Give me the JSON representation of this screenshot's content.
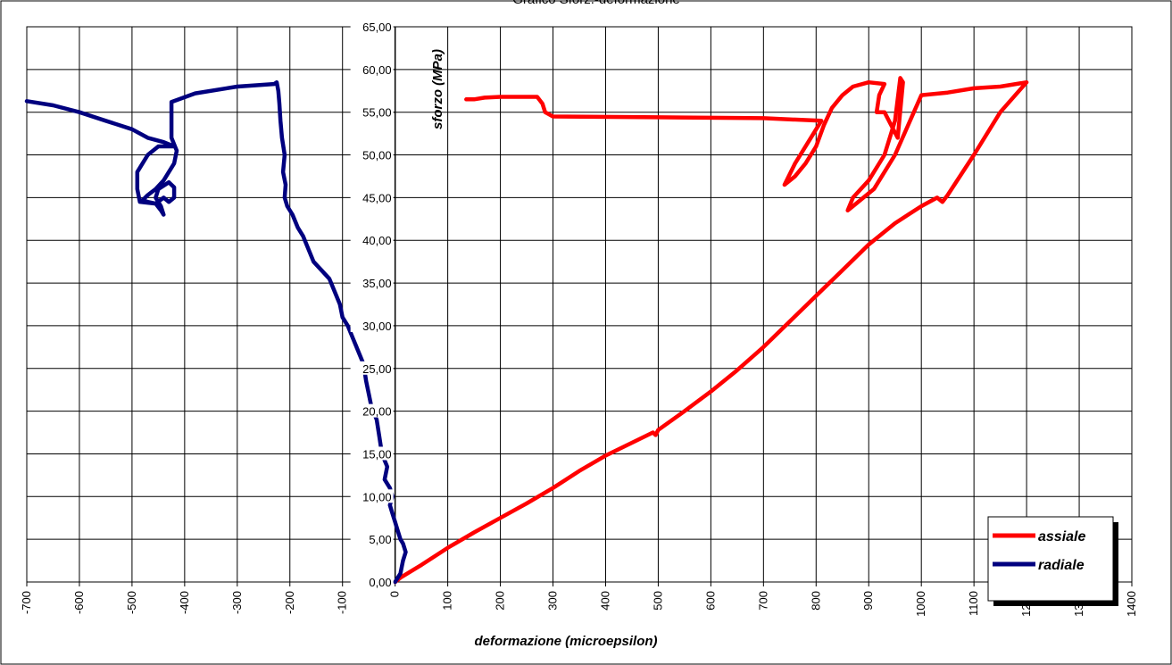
{
  "chart_data": {
    "type": "line",
    "title": "Grafico Sforz.-deformazione",
    "xlabel": "deformazione (microepsilon)",
    "ylabel": "sforzo (MPa)",
    "xlim": [
      -700,
      1400
    ],
    "ylim": [
      0,
      65
    ],
    "x_ticks": [
      -700,
      -600,
      -500,
      -400,
      -300,
      -200,
      -100,
      0,
      100,
      200,
      300,
      400,
      500,
      600,
      700,
      800,
      900,
      1000,
      1100,
      1200,
      1300,
      1400
    ],
    "y_ticks": [
      "0,00",
      "5,00",
      "10,00",
      "15,00",
      "20,00",
      "25,00",
      "30,00",
      "35,00",
      "40,00",
      "45,00",
      "50,00",
      "55,00",
      "60,00",
      "65,00"
    ],
    "grid": true,
    "legend_position": "bottom-right",
    "series": [
      {
        "name": "assiale",
        "color": "#ff0000",
        "points": [
          [
            0,
            0
          ],
          [
            10,
            0.5
          ],
          [
            50,
            2
          ],
          [
            100,
            4
          ],
          [
            150,
            5.8
          ],
          [
            200,
            7.5
          ],
          [
            250,
            9.2
          ],
          [
            300,
            11
          ],
          [
            350,
            13
          ],
          [
            400,
            14.8
          ],
          [
            450,
            16.3
          ],
          [
            490,
            17.5
          ],
          [
            495,
            17.2
          ],
          [
            500,
            17.8
          ],
          [
            550,
            20
          ],
          [
            600,
            22.3
          ],
          [
            650,
            24.8
          ],
          [
            700,
            27.5
          ],
          [
            750,
            30.5
          ],
          [
            800,
            33.5
          ],
          [
            850,
            36.5
          ],
          [
            900,
            39.5
          ],
          [
            950,
            42
          ],
          [
            1000,
            44
          ],
          [
            1030,
            45
          ],
          [
            1040,
            44.5
          ],
          [
            1050,
            45.3
          ],
          [
            1100,
            50
          ],
          [
            1150,
            55
          ],
          [
            1200,
            58.5
          ],
          [
            1150,
            58
          ],
          [
            1100,
            57.8
          ],
          [
            1050,
            57.3
          ],
          [
            1000,
            57
          ],
          [
            950,
            50
          ],
          [
            910,
            46
          ],
          [
            890,
            45
          ],
          [
            870,
            44
          ],
          [
            860,
            43.5
          ],
          [
            870,
            45
          ],
          [
            900,
            47
          ],
          [
            930,
            50
          ],
          [
            950,
            54
          ],
          [
            960,
            59
          ],
          [
            965,
            58.5
          ],
          [
            955,
            52
          ],
          [
            930,
            55
          ],
          [
            915,
            55
          ],
          [
            920,
            57
          ],
          [
            930,
            58.3
          ],
          [
            900,
            58.5
          ],
          [
            870,
            58
          ],
          [
            850,
            57
          ],
          [
            830,
            55.5
          ],
          [
            815,
            53.5
          ],
          [
            800,
            51
          ],
          [
            780,
            49
          ],
          [
            760,
            47.5
          ],
          [
            740,
            46.5
          ],
          [
            760,
            49
          ],
          [
            790,
            52
          ],
          [
            810,
            54
          ],
          [
            700,
            54.3
          ],
          [
            500,
            54.4
          ],
          [
            300,
            54.5
          ],
          [
            285,
            55
          ],
          [
            280,
            56
          ],
          [
            270,
            56.8
          ],
          [
            200,
            56.8
          ],
          [
            170,
            56.7
          ],
          [
            150,
            56.5
          ],
          [
            135,
            56.5
          ]
        ]
      },
      {
        "name": "radiale",
        "color": "#00007f",
        "points": [
          [
            0,
            0
          ],
          [
            5,
            0.5
          ],
          [
            10,
            1
          ],
          [
            15,
            2.5
          ],
          [
            20,
            3.5
          ],
          [
            15,
            4.5
          ],
          [
            10,
            5
          ],
          [
            5,
            6
          ],
          [
            0,
            7
          ],
          [
            -5,
            8
          ],
          [
            -10,
            9
          ],
          [
            -5,
            10
          ],
          [
            -10,
            11
          ],
          [
            -20,
            12
          ],
          [
            -15,
            13.5
          ],
          [
            -25,
            15
          ],
          [
            -30,
            17
          ],
          [
            -35,
            19
          ],
          [
            -45,
            20.5
          ],
          [
            -50,
            22
          ],
          [
            -55,
            23.5
          ],
          [
            -60,
            25.5
          ],
          [
            -70,
            27
          ],
          [
            -80,
            28.5
          ],
          [
            -90,
            30
          ],
          [
            -100,
            31
          ],
          [
            -105,
            32.5
          ],
          [
            -115,
            34
          ],
          [
            -125,
            35.5
          ],
          [
            -140,
            36.5
          ],
          [
            -155,
            37.5
          ],
          [
            -165,
            39
          ],
          [
            -175,
            40.5
          ],
          [
            -185,
            41.5
          ],
          [
            -195,
            43
          ],
          [
            -205,
            44
          ],
          [
            -210,
            45
          ],
          [
            -208,
            46.5
          ],
          [
            -213,
            48
          ],
          [
            -210,
            50
          ],
          [
            -215,
            52
          ],
          [
            -218,
            54
          ],
          [
            -220,
            56
          ],
          [
            -222,
            57.5
          ],
          [
            -225,
            58.5
          ],
          [
            -230,
            58.3
          ],
          [
            -300,
            58
          ],
          [
            -380,
            57.2
          ],
          [
            -425,
            56.2
          ],
          [
            -425,
            52
          ],
          [
            -415,
            50.5
          ],
          [
            -420,
            49
          ],
          [
            -440,
            47
          ],
          [
            -455,
            46
          ],
          [
            -470,
            45.3
          ],
          [
            -480,
            44.7
          ],
          [
            -470,
            44.5
          ],
          [
            -455,
            44.3
          ],
          [
            -445,
            43.5
          ],
          [
            -440,
            43
          ],
          [
            -445,
            44
          ],
          [
            -455,
            45
          ],
          [
            -450,
            46
          ],
          [
            -430,
            46.8
          ],
          [
            -420,
            46.2
          ],
          [
            -420,
            45
          ],
          [
            -430,
            44.5
          ],
          [
            -440,
            45
          ],
          [
            -455,
            44.3
          ],
          [
            -485,
            44.5
          ],
          [
            -490,
            46
          ],
          [
            -490,
            48
          ],
          [
            -470,
            50
          ],
          [
            -450,
            51
          ],
          [
            -420,
            51
          ],
          [
            -440,
            51.5
          ],
          [
            -470,
            52
          ],
          [
            -500,
            53
          ],
          [
            -550,
            54
          ],
          [
            -600,
            55
          ],
          [
            -650,
            55.8
          ],
          [
            -700,
            56.3
          ]
        ]
      }
    ]
  }
}
